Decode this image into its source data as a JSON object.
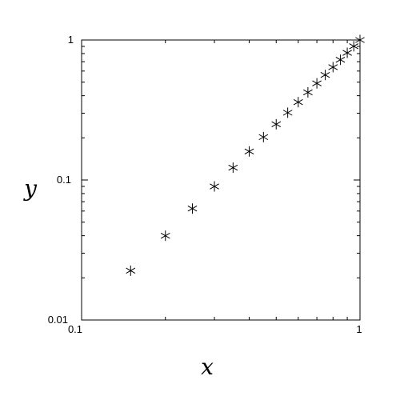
{
  "chart_data": {
    "type": "scatter",
    "title": "",
    "xlabel": "x",
    "ylabel": "y",
    "xscale": "log",
    "yscale": "log",
    "xlim": [
      0.1,
      1
    ],
    "ylim": [
      0.01,
      1
    ],
    "grid": false,
    "marker": "asterisk",
    "marker_color": "#000000",
    "x_tick_labels": [
      "0.1",
      "1"
    ],
    "y_tick_labels": [
      "0.01",
      "0.1",
      "1"
    ],
    "series": [
      {
        "x": [
          0.15,
          0.2,
          0.25,
          0.3,
          0.35,
          0.4,
          0.45,
          0.5,
          0.55,
          0.6,
          0.65,
          0.7,
          0.75,
          0.8,
          0.85,
          0.9,
          0.95,
          1.0
        ],
        "y": [
          0.0225,
          0.04,
          0.0625,
          0.09,
          0.1225,
          0.16,
          0.2025,
          0.25,
          0.3025,
          0.36,
          0.4225,
          0.49,
          0.5625,
          0.64,
          0.7225,
          0.81,
          0.9025,
          1.0
        ]
      }
    ]
  }
}
